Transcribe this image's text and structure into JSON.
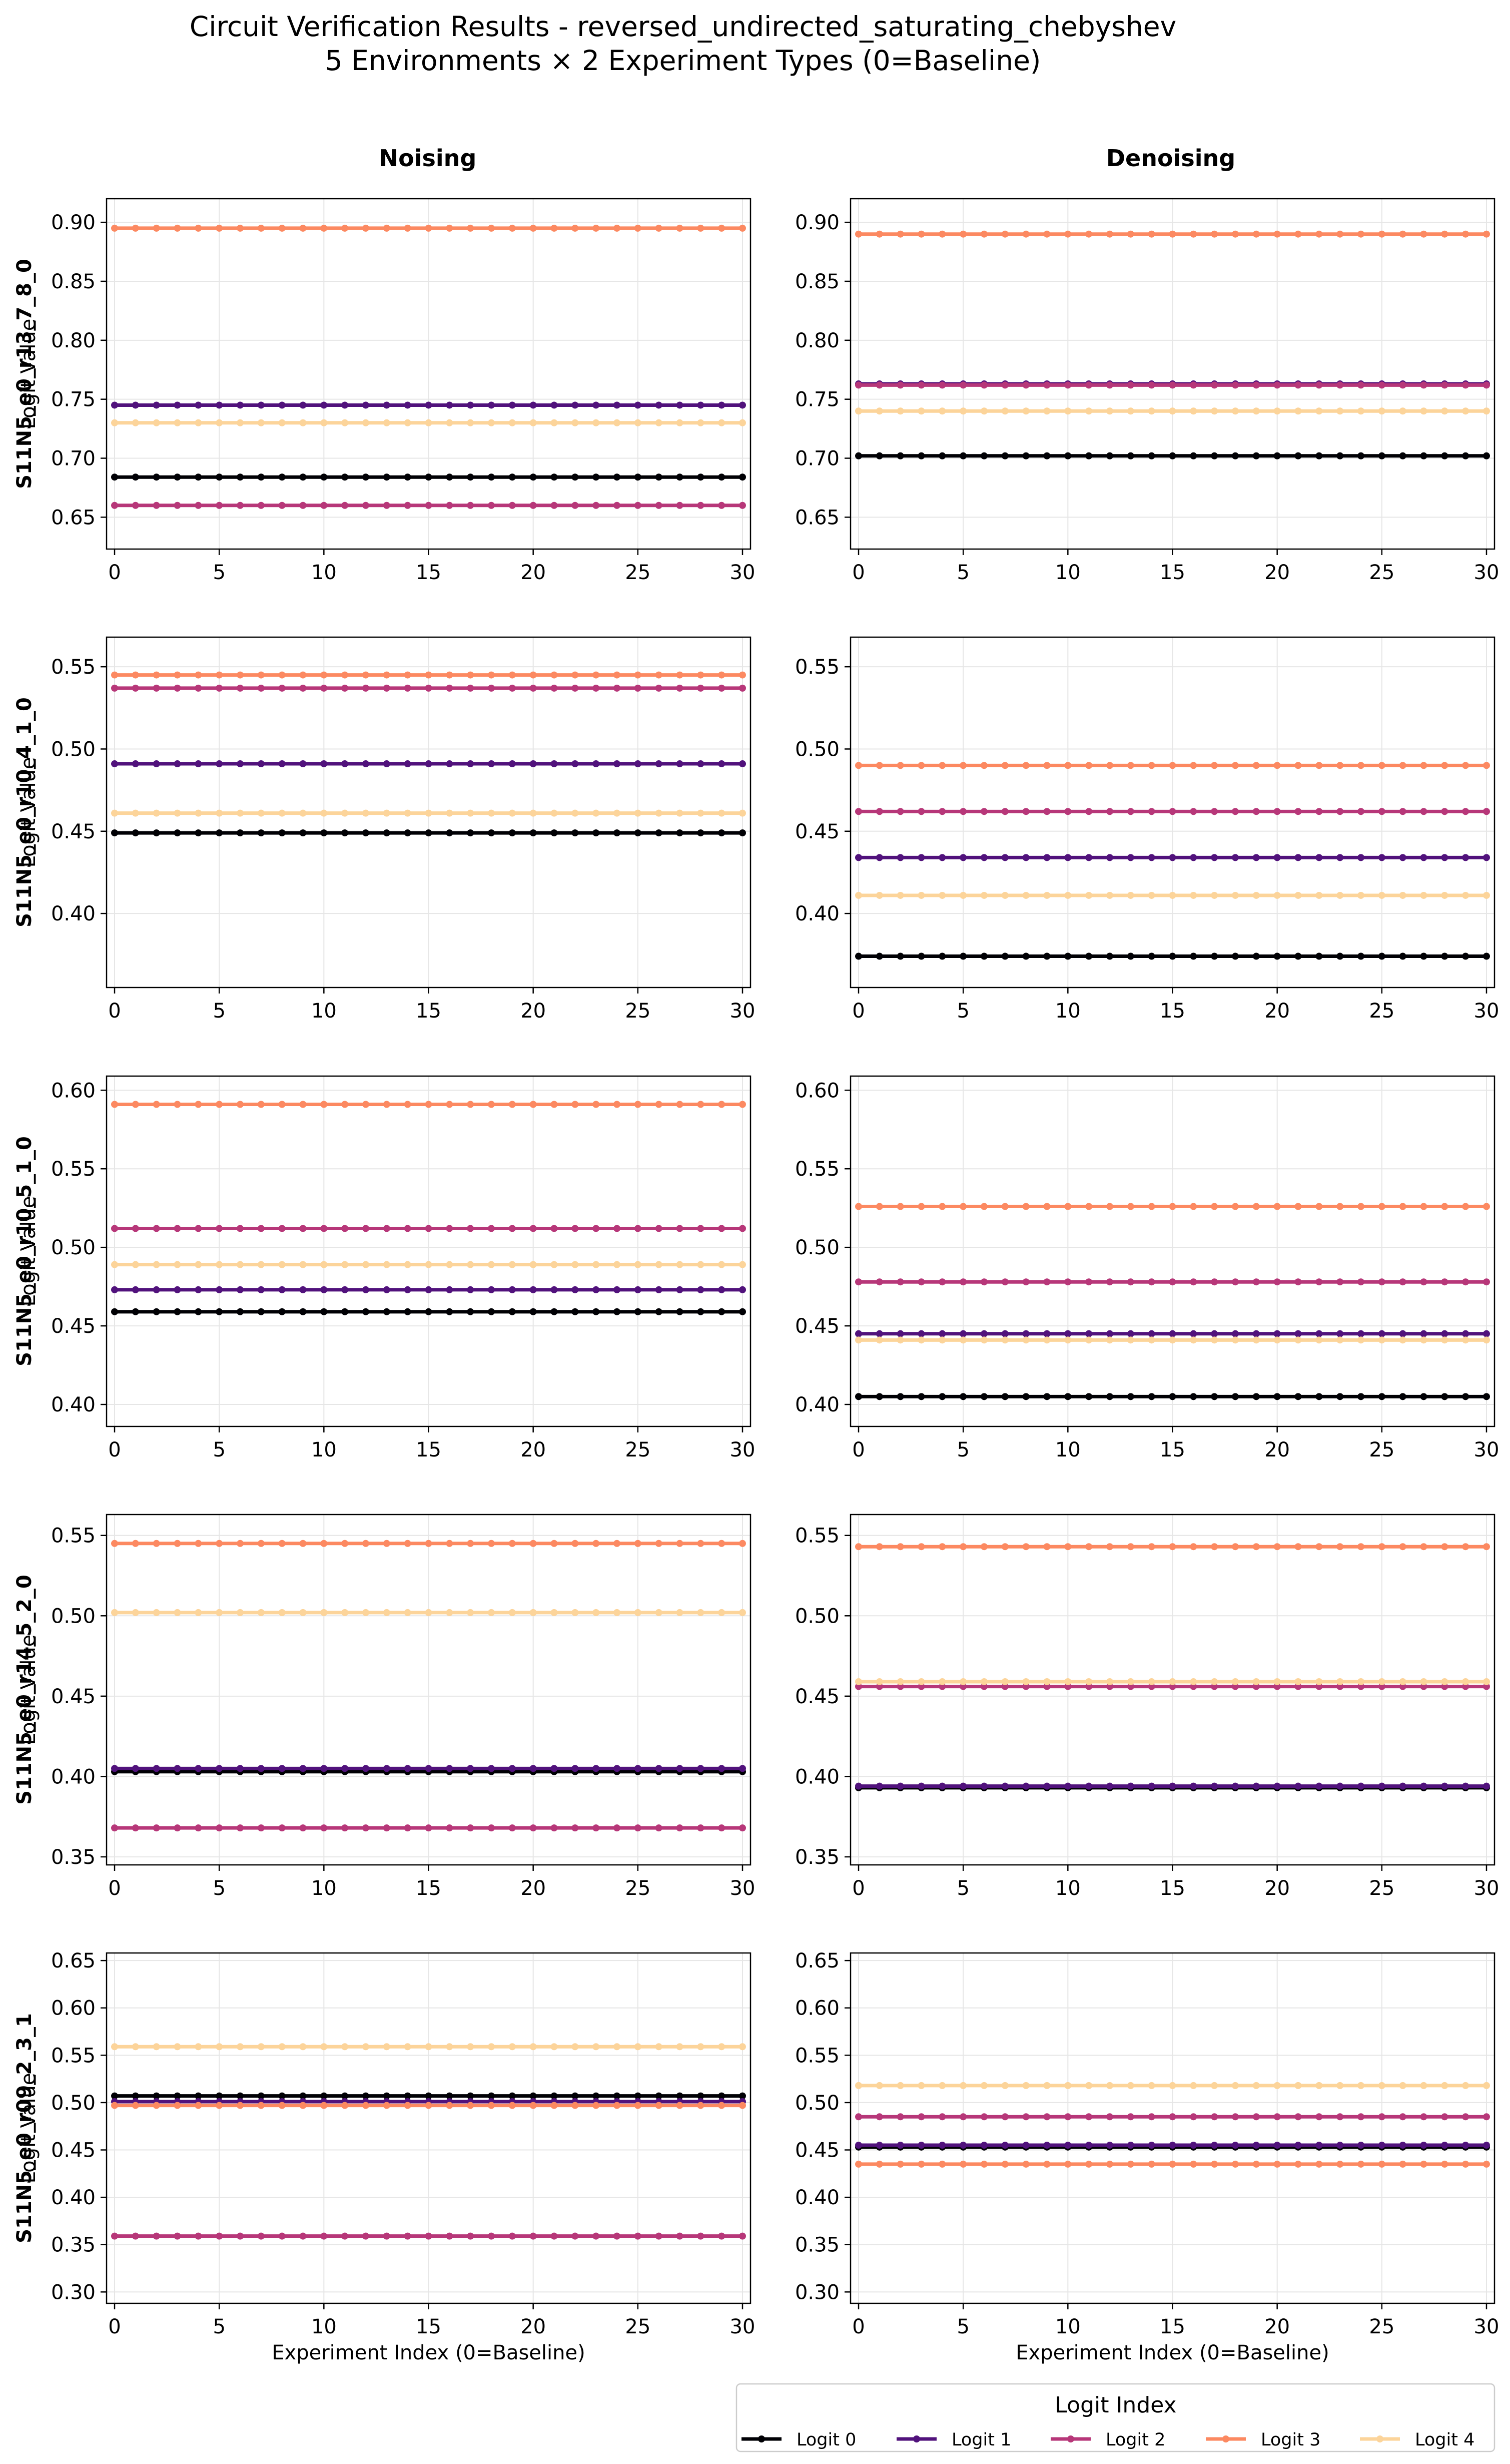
{
  "title": {
    "line1": "Circuit Verification Results - reversed_undirected_saturating_chebyshev",
    "line2": "5 Environments × 2 Experiment Types (0=Baseline)"
  },
  "columns": [
    "Noising",
    "Denoising"
  ],
  "xlabel": "Experiment Index (0=Baseline)",
  "legend": {
    "title": "Logit Index",
    "placement": "lower-right",
    "entries": [
      "Logit 0",
      "Logit 1",
      "Logit 2",
      "Logit 3",
      "Logit 4"
    ]
  },
  "series_colors": [
    "#000004",
    "#51127c",
    "#b73779",
    "#fc8961",
    "#fcd49a"
  ],
  "chart_data": {
    "type": "line",
    "x_range": [
      0,
      30
    ],
    "x_ticks": [
      0,
      5,
      10,
      15,
      20,
      25,
      30
    ],
    "grid": true,
    "rows": [
      {
        "row_label": "S11N5_e0_r13_7_8_0",
        "ylabel": "Logit Value",
        "ylim": [
          0.623,
          0.92
        ],
        "y_ticks": [
          "0.65",
          "0.70",
          "0.75",
          "0.80",
          "0.85",
          "0.90"
        ],
        "panels": [
          {
            "experiment": "Noising",
            "series": [
              {
                "name": "Logit 0",
                "value": 0.684
              },
              {
                "name": "Logit 1",
                "value": 0.745
              },
              {
                "name": "Logit 2",
                "value": 0.66
              },
              {
                "name": "Logit 3",
                "value": 0.895
              },
              {
                "name": "Logit 4",
                "value": 0.73
              }
            ]
          },
          {
            "experiment": "Denoising",
            "series": [
              {
                "name": "Logit 0",
                "value": 0.702
              },
              {
                "name": "Logit 1",
                "value": 0.763
              },
              {
                "name": "Logit 2",
                "value": 0.762
              },
              {
                "name": "Logit 3",
                "value": 0.89
              },
              {
                "name": "Logit 4",
                "value": 0.74
              }
            ]
          }
        ]
      },
      {
        "row_label": "S11N5_e0_r10_4_1_0",
        "ylabel": "Logit Value",
        "ylim": [
          0.355,
          0.568
        ],
        "y_ticks": [
          "0.40",
          "0.45",
          "0.50",
          "0.55"
        ],
        "panels": [
          {
            "experiment": "Noising",
            "series": [
              {
                "name": "Logit 0",
                "value": 0.449
              },
              {
                "name": "Logit 1",
                "value": 0.491
              },
              {
                "name": "Logit 2",
                "value": 0.537
              },
              {
                "name": "Logit 3",
                "value": 0.545
              },
              {
                "name": "Logit 4",
                "value": 0.461
              }
            ]
          },
          {
            "experiment": "Denoising",
            "series": [
              {
                "name": "Logit 0",
                "value": 0.374
              },
              {
                "name": "Logit 1",
                "value": 0.434
              },
              {
                "name": "Logit 2",
                "value": 0.462
              },
              {
                "name": "Logit 3",
                "value": 0.49
              },
              {
                "name": "Logit 4",
                "value": 0.411
              }
            ]
          }
        ]
      },
      {
        "row_label": "S11N5_e0_r10_5_1_0",
        "ylabel": "Logit Value",
        "ylim": [
          0.386,
          0.609
        ],
        "y_ticks": [
          "0.40",
          "0.45",
          "0.50",
          "0.55",
          "0.60"
        ],
        "panels": [
          {
            "experiment": "Noising",
            "series": [
              {
                "name": "Logit 0",
                "value": 0.459
              },
              {
                "name": "Logit 1",
                "value": 0.473
              },
              {
                "name": "Logit 2",
                "value": 0.512
              },
              {
                "name": "Logit 3",
                "value": 0.591
              },
              {
                "name": "Logit 4",
                "value": 0.489
              }
            ]
          },
          {
            "experiment": "Denoising",
            "series": [
              {
                "name": "Logit 0",
                "value": 0.405
              },
              {
                "name": "Logit 1",
                "value": 0.445
              },
              {
                "name": "Logit 2",
                "value": 0.478
              },
              {
                "name": "Logit 3",
                "value": 0.526
              },
              {
                "name": "Logit 4",
                "value": 0.441
              }
            ]
          }
        ]
      },
      {
        "row_label": "S11N5_e0_r14_5_2_0",
        "ylabel": "Logit Value",
        "ylim": [
          0.345,
          0.563
        ],
        "y_ticks": [
          "0.35",
          "0.40",
          "0.45",
          "0.50",
          "0.55"
        ],
        "panels": [
          {
            "experiment": "Noising",
            "series": [
              {
                "name": "Logit 0",
                "value": 0.403
              },
              {
                "name": "Logit 1",
                "value": 0.405
              },
              {
                "name": "Logit 2",
                "value": 0.368
              },
              {
                "name": "Logit 3",
                "value": 0.545
              },
              {
                "name": "Logit 4",
                "value": 0.502
              }
            ]
          },
          {
            "experiment": "Denoising",
            "series": [
              {
                "name": "Logit 0",
                "value": 0.393
              },
              {
                "name": "Logit 1",
                "value": 0.394
              },
              {
                "name": "Logit 2",
                "value": 0.456
              },
              {
                "name": "Logit 3",
                "value": 0.543
              },
              {
                "name": "Logit 4",
                "value": 0.459
              }
            ]
          }
        ]
      },
      {
        "row_label": "S11N5_e0_r09_2_3_1",
        "ylabel": "Logit Value",
        "ylim": [
          0.288,
          0.658
        ],
        "y_ticks": [
          "0.30",
          "0.35",
          "0.40",
          "0.45",
          "0.50",
          "0.55",
          "0.60",
          "0.65"
        ],
        "panels": [
          {
            "experiment": "Noising",
            "series": [
              {
                "name": "Logit 0",
                "value": 0.507
              },
              {
                "name": "Logit 1",
                "value": 0.501
              },
              {
                "name": "Logit 2",
                "value": 0.359
              },
              {
                "name": "Logit 3",
                "value": 0.497
              },
              {
                "name": "Logit 4",
                "value": 0.559
              }
            ]
          },
          {
            "experiment": "Denoising",
            "series": [
              {
                "name": "Logit 0",
                "value": 0.453
              },
              {
                "name": "Logit 1",
                "value": 0.455
              },
              {
                "name": "Logit 2",
                "value": 0.485
              },
              {
                "name": "Logit 3",
                "value": 0.435
              },
              {
                "name": "Logit 4",
                "value": 0.518
              }
            ]
          }
        ]
      }
    ]
  }
}
